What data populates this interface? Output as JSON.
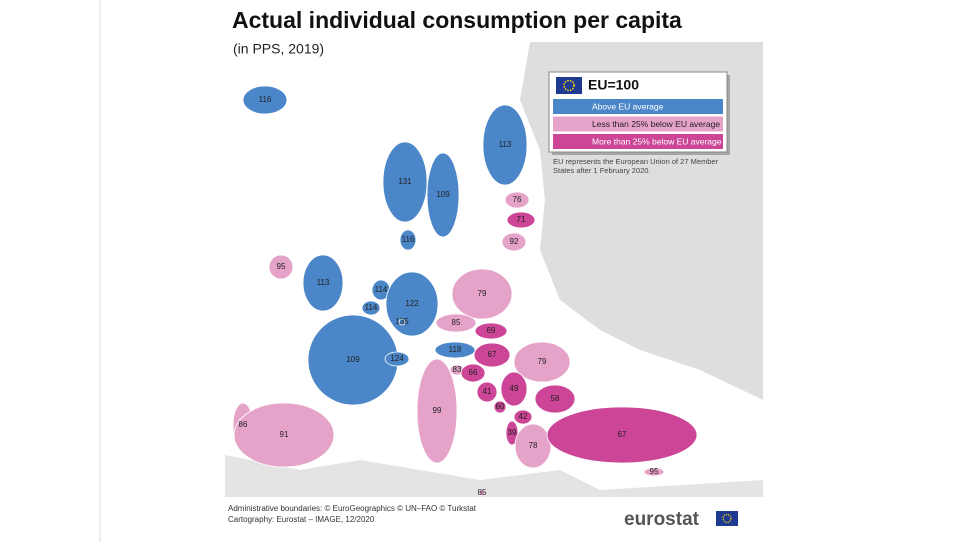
{
  "title": "Actual individual consumption per capita",
  "subtitle": "(in PPS, 2019)",
  "legend": {
    "heading": "EU=100",
    "items": [
      {
        "label": "Above EU average",
        "color": "#4a86c8"
      },
      {
        "label": "Less than 25% below EU average",
        "color": "#e6a3c9"
      },
      {
        "label": "More than 25% below EU average",
        "color": "#cc4596"
      }
    ]
  },
  "note": [
    "EU represents the European Union of 27 Member",
    "States after 1 February 2020."
  ],
  "regions": [
    {
      "value": 116,
      "category": 0
    },
    {
      "value": 113,
      "category": 0
    },
    {
      "value": 131,
      "category": 0
    },
    {
      "value": 109,
      "category": 0
    },
    {
      "value": 76,
      "category": 1
    },
    {
      "value": 71,
      "category": 2
    },
    {
      "value": 92,
      "category": 1
    },
    {
      "value": 116,
      "category": 0
    },
    {
      "value": 95,
      "category": 1
    },
    {
      "value": 113,
      "category": 0
    },
    {
      "value": 79,
      "category": 1
    },
    {
      "value": 114,
      "category": 0
    },
    {
      "value": 122,
      "category": 0
    },
    {
      "value": 114,
      "category": 0
    },
    {
      "value": 135,
      "category": 0
    },
    {
      "value": 85,
      "category": 1
    },
    {
      "value": 69,
      "category": 2
    },
    {
      "value": 109,
      "category": 0
    },
    {
      "value": 124,
      "category": 0
    },
    {
      "value": 118,
      "category": 0
    },
    {
      "value": 67,
      "category": 2
    },
    {
      "value": 79,
      "category": 1
    },
    {
      "value": 83,
      "category": 1
    },
    {
      "value": 66,
      "category": 2
    },
    {
      "value": 41,
      "category": 2
    },
    {
      "value": 49,
      "category": 2
    },
    {
      "value": 58,
      "category": 2
    },
    {
      "value": 60,
      "category": 2
    },
    {
      "value": 42,
      "category": 2
    },
    {
      "value": 39,
      "category": 2
    },
    {
      "value": 78,
      "category": 1
    },
    {
      "value": 99,
      "category": 1
    },
    {
      "value": 86,
      "category": 1
    },
    {
      "value": 91,
      "category": 1
    },
    {
      "value": 67,
      "category": 2
    },
    {
      "value": 95,
      "category": 1
    },
    {
      "value": 85,
      "category": 1
    }
  ],
  "footer": [
    "Administrative boundaries: © EuroGeographics © UN–FAO © Turkstat",
    "Cartography: Eurostat – IMAGE, 12/2020"
  ],
  "logo": "eurostat"
}
